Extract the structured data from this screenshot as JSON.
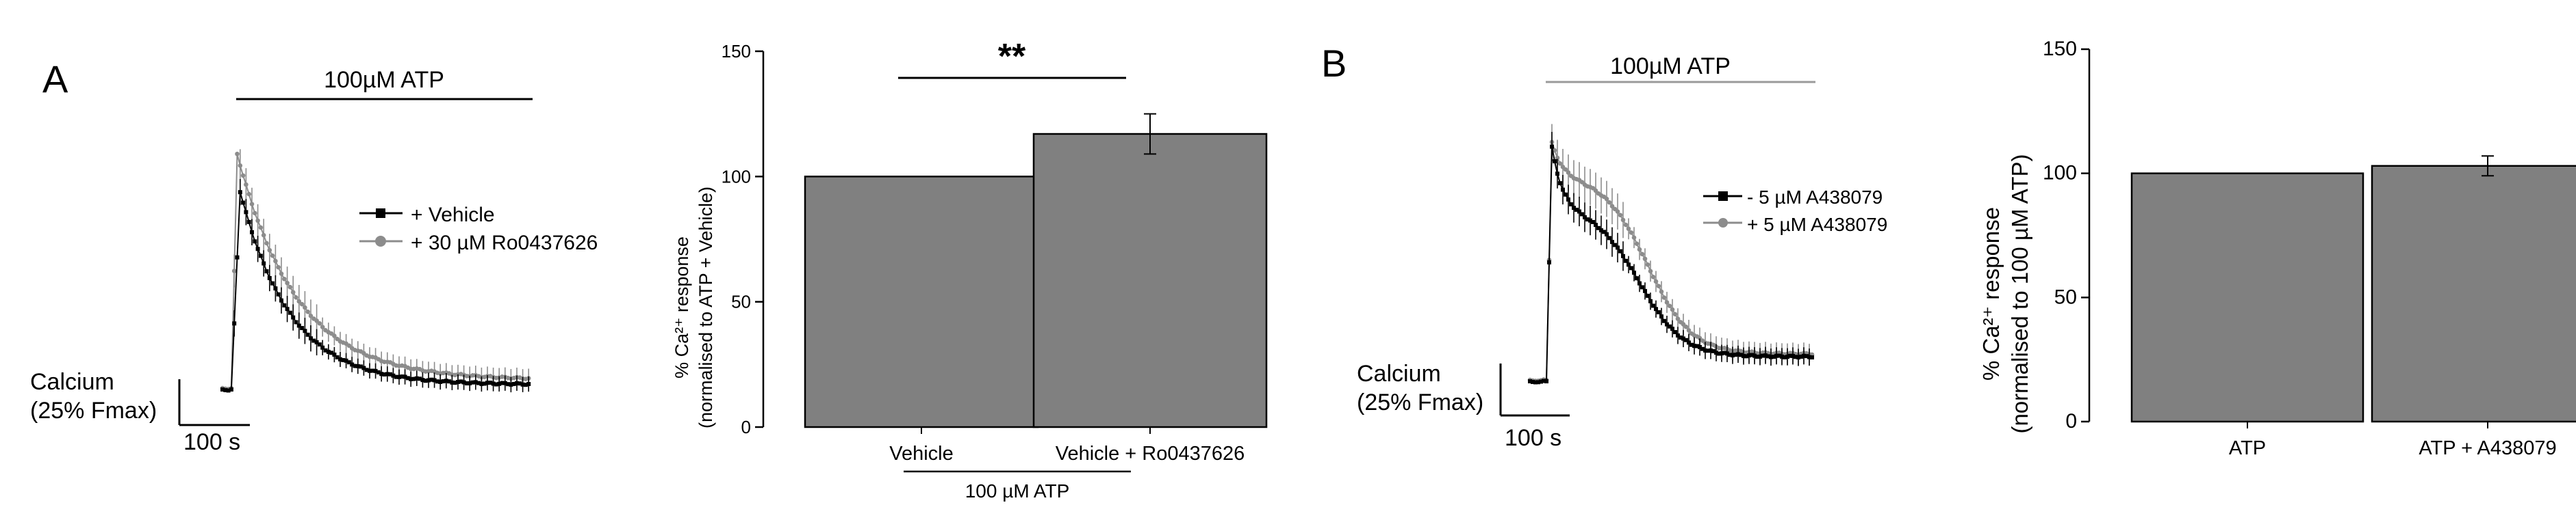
{
  "panels": {
    "A": {
      "label": "A",
      "trace": {
        "stim_label": "100µM ATP",
        "scale": {
          "y_label_1": "Calcium",
          "y_label_2": "(25% Fmax)",
          "x_label": "100 s"
        },
        "legend": [
          {
            "name": "+ Vehicle",
            "color": "#000000"
          },
          {
            "name": "+ 30 µM Ro0437626",
            "color": "#8c8c8c"
          }
        ]
      },
      "bar": {
        "ylabel_1": "% Ca²⁺ response",
        "ylabel_2": "(normalised to ATP + Vehicle)",
        "group_label": "100 µM ATP",
        "significance": "**"
      }
    },
    "B": {
      "label": "B",
      "trace": {
        "stim_label": "100µM ATP",
        "scale": {
          "y_label_1": "Calcium",
          "y_label_2": "(25% Fmax)",
          "x_label": "100 s"
        },
        "legend": [
          {
            "name": "- 5 µM A438079",
            "color": "#000000"
          },
          {
            "name": "+ 5 µM A438079",
            "color": "#8c8c8c"
          }
        ]
      },
      "bar": {
        "ylabel_1": "% Ca²⁺ response",
        "ylabel_2": "(normalised to 100 µM ATP)"
      }
    }
  },
  "chart_data": [
    {
      "type": "bar",
      "panel": "A",
      "categories": [
        "Vehicle",
        "Vehicle + Ro0437626"
      ],
      "values": [
        100,
        117
      ],
      "errors": [
        0,
        8
      ],
      "ylim": [
        0,
        150
      ],
      "yticks": [
        0,
        50,
        100,
        150
      ],
      "bar_color": "#808080"
    },
    {
      "type": "bar",
      "panel": "B",
      "categories": [
        "ATP",
        "ATP + A438079"
      ],
      "values": [
        100,
        103
      ],
      "errors": [
        0,
        4
      ],
      "ylim": [
        0,
        150
      ],
      "yticks": [
        0,
        50,
        100,
        150
      ],
      "bar_color": "#808080"
    }
  ]
}
